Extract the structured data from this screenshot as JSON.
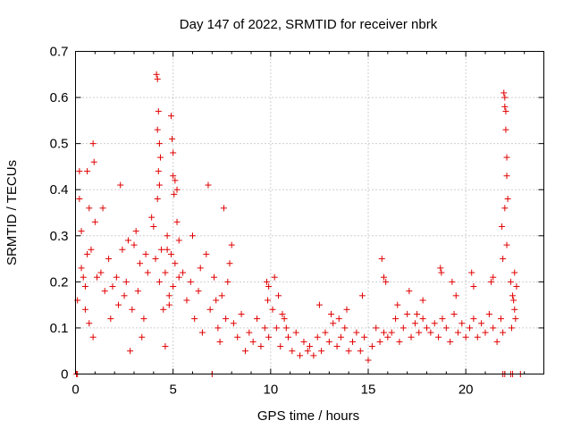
{
  "chart_data": {
    "type": "scatter",
    "title": "Day 147 of 2022, SRMTID for receiver nbrk",
    "xlabel": "GPS time / hours",
    "ylabel": "SRMTID / TECUs",
    "xlim": [
      0,
      24
    ],
    "ylim": [
      0,
      0.7
    ],
    "xticks": [
      0,
      5,
      10,
      15,
      20
    ],
    "xtick_labels": [
      "0",
      "5",
      "10",
      "15",
      "20"
    ],
    "yticks": [
      0,
      0.1,
      0.2,
      0.3,
      0.4,
      0.5,
      0.6,
      0.7
    ],
    "ytick_labels": [
      "0",
      "0.1",
      "0.2",
      "0.3",
      "0.4",
      "0.5",
      "0.6",
      "0.7"
    ],
    "grid": true,
    "marker": "+",
    "color": "#e00000",
    "series": [
      {
        "name": "SRMTID",
        "x": [
          0.1,
          0.2,
          0.3,
          0.4,
          0.5,
          0.6,
          0.7,
          0.8,
          0.9,
          1.0,
          0.3,
          0.5,
          0.7,
          0.9,
          1.1,
          0.2,
          0.6,
          0.95,
          1.3,
          1.5,
          1.7,
          1.9,
          2.1,
          2.3,
          2.5,
          2.7,
          2.9,
          3.1,
          3.3,
          3.5,
          3.7,
          3.9,
          2.2,
          2.6,
          3.0,
          3.4,
          1.4,
          1.8,
          2.4,
          2.8,
          3.2,
          3.6,
          4.0,
          4.1,
          4.2,
          4.3,
          4.4,
          4.5,
          4.6,
          4.7,
          4.8,
          4.9,
          5.0,
          5.1,
          5.2,
          5.3,
          4.15,
          4.2,
          4.2,
          4.25,
          4.25,
          4.3,
          4.3,
          4.35,
          4.9,
          4.95,
          5.0,
          5.0,
          5.05,
          5.1,
          4.6,
          4.7,
          4.8,
          5.2,
          5.3,
          5.5,
          5.7,
          5.9,
          6.1,
          6.3,
          6.5,
          6.7,
          6.9,
          7.1,
          7.3,
          7.5,
          7.7,
          7.9,
          8.0,
          6.0,
          6.4,
          6.8,
          7.2,
          7.4,
          7.6,
          7.8,
          8.1,
          8.3,
          8.5,
          8.7,
          8.9,
          9.1,
          9.3,
          9.5,
          9.7,
          9.9,
          9.8,
          9.85,
          9.9,
          10.1,
          10.3,
          10.5,
          10.7,
          10.9,
          11.1,
          11.3,
          11.5,
          11.7,
          11.9,
          10.2,
          10.4,
          10.6,
          10.8,
          12.0,
          12.2,
          12.4,
          12.6,
          12.8,
          13.0,
          13.2,
          13.4,
          13.6,
          13.8,
          14.0,
          12.5,
          13.1,
          13.5,
          13.9,
          14.2,
          14.4,
          14.6,
          14.8,
          15.0,
          15.2,
          15.4,
          15.6,
          15.8,
          16.0,
          15.7,
          15.8,
          15.9,
          14.7,
          16.2,
          16.4,
          16.6,
          16.8,
          17.0,
          17.2,
          17.4,
          17.6,
          17.8,
          18.0,
          16.5,
          17.1,
          17.5,
          17.8,
          18.2,
          18.4,
          18.6,
          18.8,
          19.0,
          19.2,
          19.4,
          19.6,
          19.8,
          20.0,
          18.7,
          18.75,
          19.3,
          19.5,
          20.3,
          20.4,
          20.2,
          20.4,
          20.6,
          20.8,
          21.0,
          21.2,
          21.4,
          21.6,
          21.8,
          21.9,
          21.3,
          21.4,
          21.95,
          22.0,
          22.0,
          22.05,
          22.05,
          22.1,
          22.1,
          22.15,
          21.85,
          21.9,
          22.0,
          22.1,
          22.3,
          22.4,
          22.5,
          22.6,
          22.35,
          22.45,
          22.55,
          22.5,
          0.05,
          0.1,
          7.0,
          21.9,
          22.0,
          22.3,
          22.4,
          22.8
        ],
        "y": [
          0.16,
          0.44,
          0.31,
          0.21,
          0.19,
          0.44,
          0.36,
          0.27,
          0.5,
          0.33,
          0.23,
          0.14,
          0.11,
          0.08,
          0.21,
          0.38,
          0.26,
          0.46,
          0.22,
          0.18,
          0.25,
          0.19,
          0.21,
          0.41,
          0.17,
          0.29,
          0.14,
          0.31,
          0.24,
          0.12,
          0.22,
          0.34,
          0.15,
          0.2,
          0.28,
          0.08,
          0.36,
          0.12,
          0.27,
          0.05,
          0.18,
          0.26,
          0.32,
          0.25,
          0.38,
          0.2,
          0.27,
          0.14,
          0.22,
          0.3,
          0.17,
          0.26,
          0.19,
          0.24,
          0.33,
          0.21,
          0.65,
          0.64,
          0.53,
          0.57,
          0.44,
          0.5,
          0.41,
          0.47,
          0.56,
          0.51,
          0.48,
          0.43,
          0.39,
          0.42,
          0.06,
          0.27,
          0.15,
          0.4,
          0.29,
          0.22,
          0.16,
          0.2,
          0.12,
          0.18,
          0.09,
          0.26,
          0.14,
          0.21,
          0.1,
          0.17,
          0.12,
          0.24,
          0.28,
          0.3,
          0.23,
          0.41,
          0.16,
          0.07,
          0.36,
          0.2,
          0.11,
          0.08,
          0.13,
          0.05,
          0.09,
          0.07,
          0.12,
          0.06,
          0.1,
          0.08,
          0.2,
          0.16,
          0.19,
          0.14,
          0.1,
          0.06,
          0.12,
          0.08,
          0.05,
          0.09,
          0.04,
          0.07,
          0.05,
          0.21,
          0.17,
          0.13,
          0.1,
          0.06,
          0.04,
          0.08,
          0.05,
          0.09,
          0.07,
          0.11,
          0.06,
          0.08,
          0.1,
          0.05,
          0.15,
          0.13,
          0.12,
          0.14,
          0.07,
          0.09,
          0.05,
          0.08,
          0.03,
          0.06,
          0.1,
          0.07,
          0.09,
          0.08,
          0.25,
          0.21,
          0.2,
          0.17,
          0.09,
          0.12,
          0.07,
          0.1,
          0.13,
          0.08,
          0.11,
          0.09,
          0.12,
          0.1,
          0.15,
          0.18,
          0.13,
          0.16,
          0.09,
          0.11,
          0.08,
          0.12,
          0.1,
          0.07,
          0.13,
          0.09,
          0.11,
          0.08,
          0.23,
          0.22,
          0.2,
          0.17,
          0.22,
          0.19,
          0.1,
          0.12,
          0.08,
          0.11,
          0.09,
          0.13,
          0.1,
          0.07,
          0.12,
          0.09,
          0.2,
          0.21,
          0.61,
          0.6,
          0.58,
          0.57,
          0.53,
          0.47,
          0.43,
          0.38,
          0.32,
          0.25,
          0.36,
          0.28,
          0.2,
          0.17,
          0.14,
          0.19,
          0.1,
          0.16,
          0.12,
          0.22,
          0.0,
          0.0,
          0.0,
          0.0,
          0.0,
          0.0,
          0.0,
          0.0
        ]
      }
    ]
  }
}
